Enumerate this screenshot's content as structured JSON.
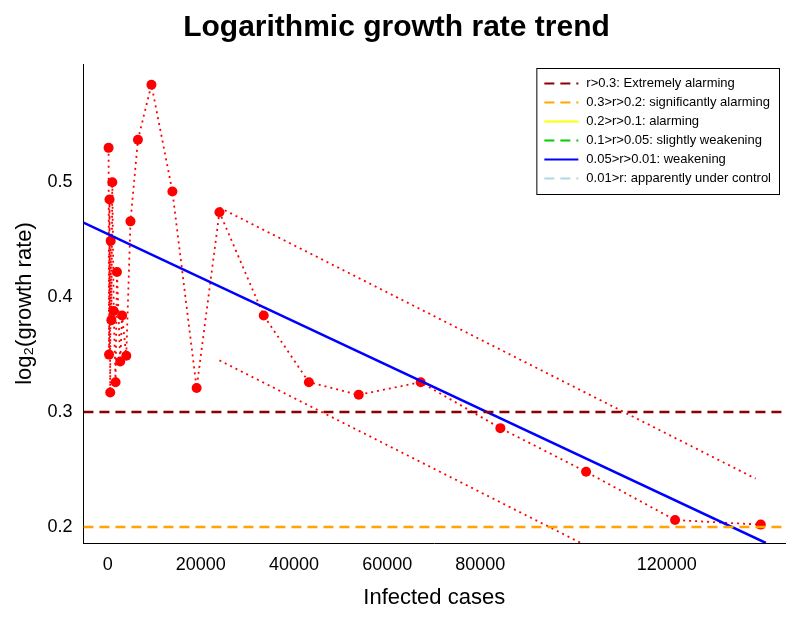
{
  "chart_data": {
    "type": "scatter",
    "title": "Logarithmic growth rate trend",
    "x_label": "Infected cases",
    "y_label": "log₂(growth rate)",
    "xlim": [
      -5200,
      145400
    ],
    "xticks": [
      0,
      20000,
      40000,
      60000,
      80000,
      120000
    ],
    "ylim": [
      0.186,
      0.603
    ],
    "yticks": [
      0.2,
      0.3,
      0.4,
      0.5
    ],
    "grid": false,
    "legend": "top-right",
    "series": [
      {
        "name": "r>0.3: Extremely alarming",
        "type": "hline",
        "color": "#8b0000",
        "line_style": "dashed",
        "y": 0.3
      },
      {
        "name": "0.3>r>0.2: significantly alarming",
        "type": "hline",
        "color": "#ffa500",
        "line_style": "dashed",
        "y": 0.2
      },
      {
        "name": "0.2>r>0.1: alarming",
        "color": "#ffff00",
        "line_style": "solid"
      },
      {
        "name": "0.1>r>0.05: slightly weakening",
        "color": "#00cd00",
        "line_style": "dashed"
      },
      {
        "name": "0.05>r>0.01: weakening",
        "type": "line",
        "color": "#0000ff",
        "line_style": "solid",
        "x": [
          -5200,
          141300
        ],
        "values": [
          0.465,
          0.186
        ]
      },
      {
        "name": "0.01>r: apparently under control",
        "color": "#add8e6",
        "line_style": "dashed"
      },
      {
        "type": "line",
        "color": "#ff0000",
        "line_style": "dotted",
        "marker": "circle",
        "x": [
          200,
          300,
          400,
          550,
          650,
          800,
          1000,
          1300,
          1700,
          2000,
          2700,
          3100,
          4000,
          4900,
          6500,
          9400,
          13900,
          19100,
          24000,
          33500,
          43200,
          53900,
          67200,
          84300,
          102700,
          121800,
          140200
        ],
        "values": [
          0.53,
          0.35,
          0.485,
          0.317,
          0.449,
          0.38,
          0.5,
          0.388,
          0.326,
          0.422,
          0.344,
          0.384,
          0.349,
          0.466,
          0.537,
          0.585,
          0.492,
          0.321,
          0.474,
          0.384,
          0.326,
          0.315,
          0.326,
          0.286,
          0.248,
          0.206,
          0.202
        ]
      },
      {
        "type": "line",
        "color": "#ff0000",
        "line_style": "dotted",
        "x": [
          24000,
          139100
        ],
        "values": [
          0.478,
          0.242
        ]
      },
      {
        "type": "line",
        "color": "#ff0000",
        "line_style": "dotted",
        "x": [
          24000,
          101600
        ],
        "values": [
          0.345,
          0.186
        ]
      }
    ]
  }
}
